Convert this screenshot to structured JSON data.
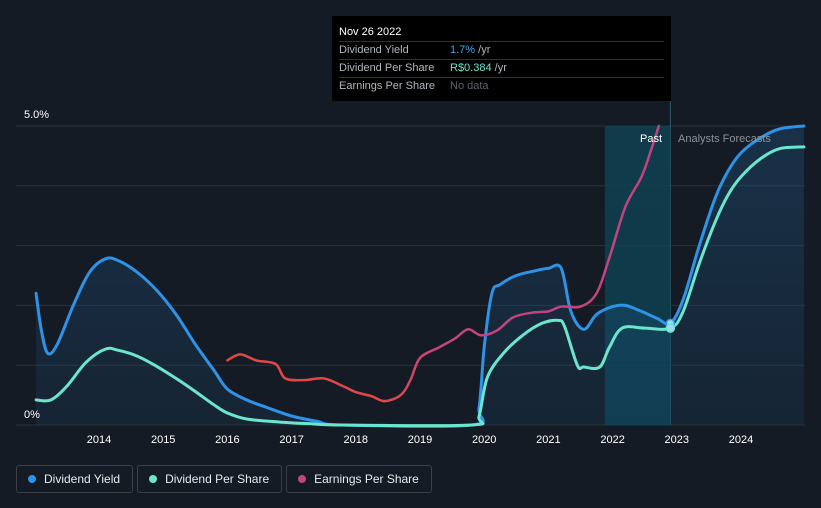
{
  "tooltip": {
    "date": "Nov 26 2022",
    "rows": [
      {
        "label": "Dividend Yield",
        "value": "1.7%",
        "unit": " /yr"
      },
      {
        "label": "Dividend Per Share",
        "value": "R$0.384",
        "unit": " /yr"
      },
      {
        "label": "Earnings Per Share",
        "value": "No data",
        "unit": ""
      }
    ]
  },
  "regions": {
    "past_label": "Past",
    "forecast_label": "Analysts Forecasts"
  },
  "legend": [
    {
      "label": "Dividend Yield",
      "color": "#2e93e6"
    },
    {
      "label": "Dividend Per Share",
      "color": "#6ce5cd"
    },
    {
      "label": "Earnings Per Share",
      "color": "#c2447f"
    }
  ],
  "colors": {
    "background": "#151b24",
    "dividend_yield": "#2e93e6",
    "dividend_per_share": "#6ce5cd",
    "earnings_per_share": "#c2447f",
    "earnings_per_share_low": "#e04848",
    "gridline": "#2b3138",
    "past_band": "#0f3a4a"
  },
  "chart_data": {
    "type": "line",
    "title": "",
    "xlabel": "",
    "ylabel": "",
    "x_ticks": [
      "2014",
      "2015",
      "2016",
      "2017",
      "2018",
      "2019",
      "2020",
      "2021",
      "2022",
      "2023",
      "2024"
    ],
    "y_tick_labels": [
      "0%",
      "5.0%"
    ],
    "ylim": [
      0,
      5.0
    ],
    "xlim": [
      2013.0,
      2024.98
    ],
    "grid": true,
    "past_region": [
      2021.88,
      2022.9
    ],
    "series": [
      {
        "name": "Dividend Yield",
        "unit": "%",
        "points": [
          [
            2013.02,
            2.2
          ],
          [
            2013.1,
            1.6
          ],
          [
            2013.2,
            1.2
          ],
          [
            2013.35,
            1.35
          ],
          [
            2013.6,
            2.0
          ],
          [
            2013.85,
            2.55
          ],
          [
            2014.1,
            2.78
          ],
          [
            2014.3,
            2.75
          ],
          [
            2014.6,
            2.55
          ],
          [
            2014.9,
            2.25
          ],
          [
            2015.2,
            1.85
          ],
          [
            2015.5,
            1.35
          ],
          [
            2015.8,
            0.9
          ],
          [
            2016.0,
            0.6
          ],
          [
            2016.3,
            0.42
          ],
          [
            2016.6,
            0.3
          ],
          [
            2017.0,
            0.15
          ],
          [
            2017.4,
            0.06
          ],
          [
            2017.8,
            0.0
          ],
          [
            2019.8,
            0.0
          ],
          [
            2019.92,
            0.3
          ],
          [
            2020.0,
            1.3
          ],
          [
            2020.12,
            2.2
          ],
          [
            2020.25,
            2.35
          ],
          [
            2020.5,
            2.5
          ],
          [
            2020.8,
            2.58
          ],
          [
            2021.0,
            2.62
          ],
          [
            2021.2,
            2.62
          ],
          [
            2021.35,
            1.9
          ],
          [
            2021.55,
            1.6
          ],
          [
            2021.75,
            1.85
          ],
          [
            2022.0,
            1.98
          ],
          [
            2022.2,
            2.0
          ],
          [
            2022.45,
            1.9
          ],
          [
            2022.7,
            1.78
          ],
          [
            2022.9,
            1.7
          ],
          [
            2023.1,
            2.1
          ],
          [
            2023.35,
            3.0
          ],
          [
            2023.6,
            3.8
          ],
          [
            2023.8,
            4.25
          ],
          [
            2024.0,
            4.55
          ],
          [
            2024.3,
            4.8
          ],
          [
            2024.6,
            4.95
          ],
          [
            2024.98,
            5.0
          ]
        ]
      },
      {
        "name": "Dividend Per Share",
        "unit": "%",
        "points": [
          [
            2013.02,
            0.42
          ],
          [
            2013.25,
            0.42
          ],
          [
            2013.5,
            0.65
          ],
          [
            2013.8,
            1.05
          ],
          [
            2014.1,
            1.27
          ],
          [
            2014.3,
            1.25
          ],
          [
            2014.6,
            1.15
          ],
          [
            2014.9,
            0.98
          ],
          [
            2015.2,
            0.78
          ],
          [
            2015.5,
            0.56
          ],
          [
            2015.8,
            0.33
          ],
          [
            2016.0,
            0.2
          ],
          [
            2016.3,
            0.1
          ],
          [
            2016.8,
            0.05
          ],
          [
            2017.3,
            0.02
          ],
          [
            2017.8,
            0.0
          ],
          [
            2019.8,
            0.0
          ],
          [
            2019.92,
            0.15
          ],
          [
            2020.05,
            0.8
          ],
          [
            2020.3,
            1.2
          ],
          [
            2020.6,
            1.5
          ],
          [
            2020.9,
            1.7
          ],
          [
            2021.15,
            1.75
          ],
          [
            2021.25,
            1.65
          ],
          [
            2021.45,
            1.0
          ],
          [
            2021.55,
            0.97
          ],
          [
            2021.8,
            0.97
          ],
          [
            2021.95,
            1.3
          ],
          [
            2022.15,
            1.62
          ],
          [
            2022.5,
            1.62
          ],
          [
            2022.9,
            1.62
          ],
          [
            2023.1,
            1.9
          ],
          [
            2023.35,
            2.7
          ],
          [
            2023.6,
            3.4
          ],
          [
            2023.8,
            3.85
          ],
          [
            2024.0,
            4.15
          ],
          [
            2024.3,
            4.45
          ],
          [
            2024.6,
            4.62
          ],
          [
            2024.98,
            4.65
          ]
        ]
      },
      {
        "name": "Earnings Per Share",
        "unit": "index",
        "points": [
          [
            2016.0,
            1.08
          ],
          [
            2016.2,
            1.18
          ],
          [
            2016.45,
            1.08
          ],
          [
            2016.75,
            1.02
          ],
          [
            2016.9,
            0.78
          ],
          [
            2017.2,
            0.75
          ],
          [
            2017.5,
            0.78
          ],
          [
            2017.8,
            0.65
          ],
          [
            2018.0,
            0.55
          ],
          [
            2018.25,
            0.48
          ],
          [
            2018.45,
            0.4
          ],
          [
            2018.7,
            0.5
          ],
          [
            2018.85,
            0.75
          ],
          [
            2019.0,
            1.12
          ],
          [
            2019.3,
            1.3
          ],
          [
            2019.55,
            1.45
          ],
          [
            2019.75,
            1.6
          ],
          [
            2019.95,
            1.5
          ],
          [
            2020.2,
            1.58
          ],
          [
            2020.45,
            1.8
          ],
          [
            2020.75,
            1.88
          ],
          [
            2021.0,
            1.9
          ],
          [
            2021.2,
            1.98
          ],
          [
            2021.5,
            1.98
          ],
          [
            2021.75,
            2.2
          ],
          [
            2021.95,
            2.8
          ],
          [
            2022.2,
            3.65
          ],
          [
            2022.45,
            4.15
          ],
          [
            2022.6,
            4.6
          ],
          [
            2022.72,
            5.0
          ]
        ]
      }
    ],
    "markers": [
      {
        "series": "Dividend Yield",
        "x": 2022.9,
        "y": 1.7
      },
      {
        "series": "Dividend Per Share",
        "x": 2022.9,
        "y": 1.62
      }
    ]
  }
}
